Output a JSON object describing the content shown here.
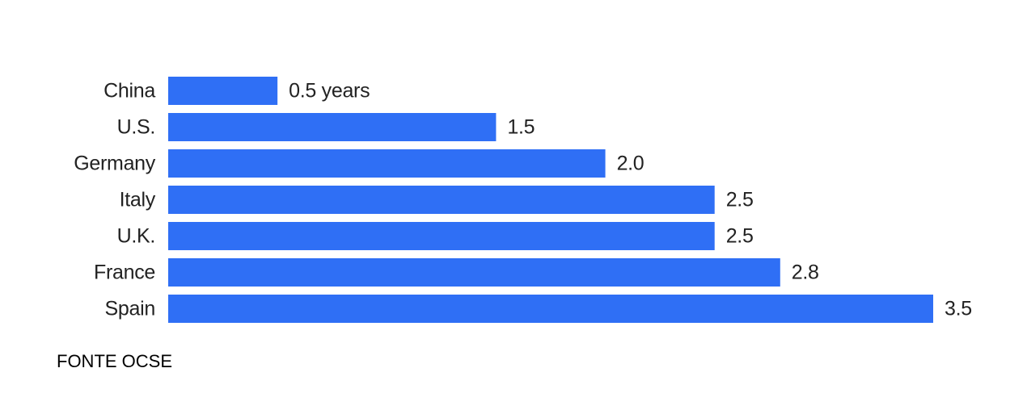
{
  "chart_data": {
    "type": "bar",
    "orientation": "horizontal",
    "categories": [
      "China",
      "U.S.",
      "Germany",
      "Italy",
      "U.K.",
      "France",
      "Spain"
    ],
    "values": [
      0.5,
      1.5,
      2.0,
      2.5,
      2.5,
      2.8,
      3.5
    ],
    "value_labels": [
      "0.5 years",
      "1.5",
      "2.0",
      "2.5",
      "2.5",
      "2.8",
      "3.5"
    ],
    "title": "",
    "xlabel": "",
    "ylabel": "",
    "xlim": [
      0,
      3.5
    ],
    "grid": false,
    "legend": "none",
    "bar_color": "#2f6ff5"
  },
  "footer": {
    "source": "FONTE OCSE"
  }
}
